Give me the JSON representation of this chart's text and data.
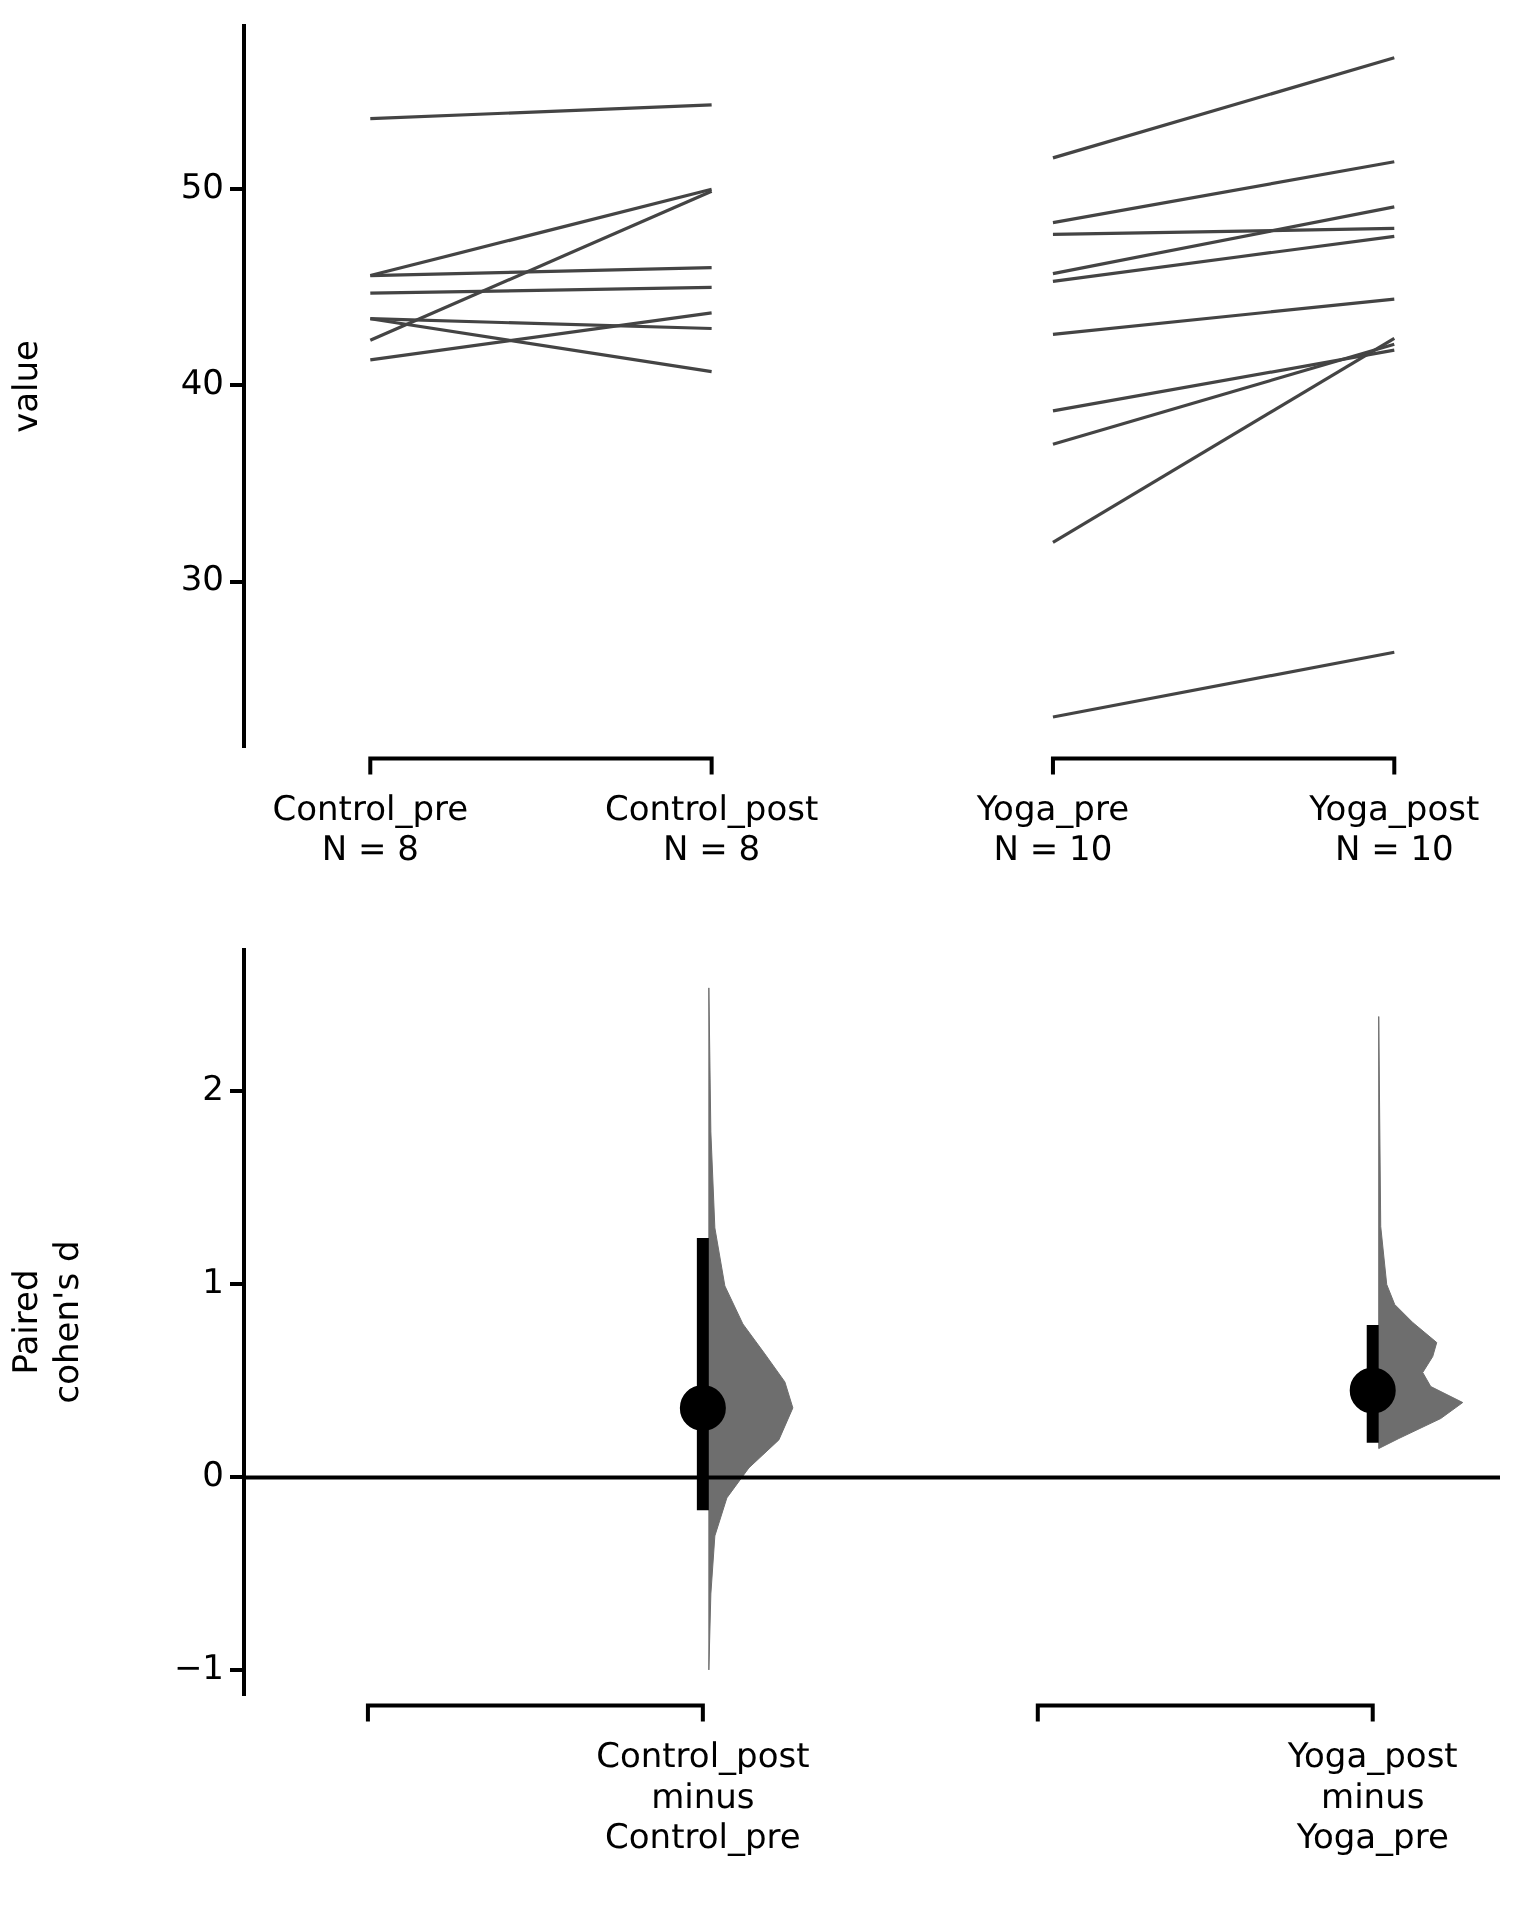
{
  "chart_data": [
    {
      "type": "line",
      "ylabel": "value",
      "categories": [
        "Control_pre\nN = 8",
        "Control_post\nN = 8",
        "Yoga_pre\nN = 10",
        "Yoga_post\nN = 10"
      ],
      "ylim": [
        21.6,
        58.3
      ],
      "yticks": [
        30,
        40,
        50
      ],
      "grid": false,
      "legend": false,
      "marker": "none",
      "series": [
        {
          "color": "#444444",
          "values": [
            53.6,
            54.3,
            null,
            null
          ]
        },
        {
          "color": "#444444",
          "values": [
            45.6,
            50.0,
            null,
            null
          ]
        },
        {
          "color": "#444444",
          "values": [
            45.6,
            46.0,
            null,
            null
          ]
        },
        {
          "color": "#444444",
          "values": [
            44.7,
            45.0,
            null,
            null
          ]
        },
        {
          "color": "#444444",
          "values": [
            43.4,
            42.9,
            null,
            null
          ]
        },
        {
          "color": "#444444",
          "values": [
            43.4,
            40.7,
            null,
            null
          ]
        },
        {
          "color": "#444444",
          "values": [
            42.3,
            49.9,
            null,
            null
          ]
        },
        {
          "color": "#444444",
          "values": [
            41.3,
            43.7,
            null,
            null
          ]
        },
        {
          "color": "#444444",
          "values": [
            null,
            null,
            51.6,
            56.7
          ]
        },
        {
          "color": "#444444",
          "values": [
            null,
            null,
            48.3,
            51.4
          ]
        },
        {
          "color": "#444444",
          "values": [
            null,
            null,
            47.7,
            48.0
          ]
        },
        {
          "color": "#444444",
          "values": [
            null,
            null,
            45.7,
            49.1
          ]
        },
        {
          "color": "#444444",
          "values": [
            null,
            null,
            45.3,
            47.6
          ]
        },
        {
          "color": "#444444",
          "values": [
            null,
            null,
            42.6,
            44.4
          ]
        },
        {
          "color": "#444444",
          "values": [
            null,
            null,
            38.7,
            41.8
          ]
        },
        {
          "color": "#444444",
          "values": [
            null,
            null,
            37.0,
            42.1
          ]
        },
        {
          "color": "#444444",
          "values": [
            null,
            null,
            32.0,
            42.4
          ]
        },
        {
          "color": "#444444",
          "values": [
            null,
            null,
            23.1,
            26.4
          ]
        }
      ]
    },
    {
      "type": "scatter",
      "ylabel": "Paired\ncohen's d",
      "categories": [
        null,
        "Control_post\nminus\nControl_pre",
        null,
        "Yoga_post\nminus\nYoga_pre"
      ],
      "ylim": [
        -1.12,
        2.73
      ],
      "yticks": [
        {
          "value": -1,
          "label": "−1"
        },
        0,
        1,
        2
      ],
      "grid": false,
      "legend": false,
      "ref_lines": [
        {
          "axis": "y",
          "value": 0,
          "color": "#000000"
        }
      ],
      "series": [
        {
          "color": "#000000",
          "marker": "circle",
          "values": [
            null,
            0.36,
            null,
            0.45
          ],
          "errors": [
            null,
            [
              -0.17,
              1.24
            ],
            null,
            [
              0.18,
              0.79
            ]
          ]
        }
      ]
    }
  ]
}
